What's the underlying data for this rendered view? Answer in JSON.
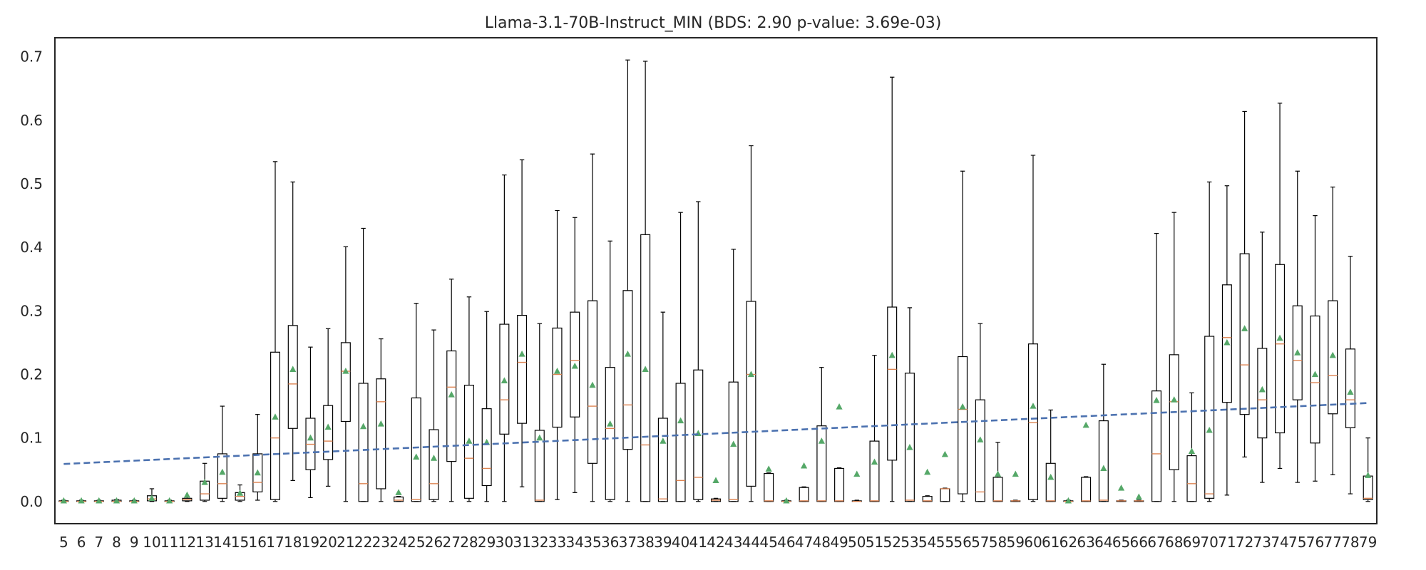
{
  "chart_data": {
    "type": "box",
    "title": "Llama-3.1-70B-Instruct_MIN (BDS: 2.90 p-value: 3.69e-03)",
    "xlabel": "",
    "ylabel": "",
    "ylim": [
      -0.035,
      0.73
    ],
    "grid": false,
    "y_ticks": [
      0.0,
      0.1,
      0.2,
      0.3,
      0.4,
      0.5,
      0.6,
      0.7
    ],
    "x_ticks": [
      5,
      6,
      7,
      8,
      9,
      10,
      11,
      12,
      13,
      14,
      15,
      16,
      17,
      18,
      19,
      20,
      21,
      22,
      23,
      24,
      25,
      26,
      27,
      28,
      29,
      30,
      31,
      32,
      33,
      34,
      35,
      36,
      37,
      38,
      39,
      40,
      41,
      42,
      43,
      44,
      45,
      46,
      47,
      48,
      49,
      50,
      51,
      52,
      53,
      54,
      55,
      56,
      57,
      58,
      59,
      60,
      61,
      62,
      63,
      64,
      65,
      66,
      67,
      68,
      69,
      70,
      71,
      72,
      73,
      74,
      75,
      76,
      77,
      78,
      79
    ],
    "trend_line": {
      "x": [
        5,
        79
      ],
      "y": [
        0.059,
        0.155
      ],
      "style": "dashed",
      "color": "#4c72b0"
    },
    "colors": {
      "box": "#000000",
      "median": "#dd8452",
      "mean": "#55a868",
      "trend": "#4c72b0"
    },
    "boxes": [
      {
        "x": 5,
        "whislo": 0,
        "q1": 0,
        "med": 0,
        "q3": 0.001,
        "whishi": 0.002,
        "mean": 0.001
      },
      {
        "x": 6,
        "whislo": 0,
        "q1": 0,
        "med": 0,
        "q3": 0.001,
        "whishi": 0.002,
        "mean": 0.001
      },
      {
        "x": 7,
        "whislo": 0,
        "q1": 0,
        "med": 0,
        "q3": 0.001,
        "whishi": 0.002,
        "mean": 0.001
      },
      {
        "x": 8,
        "whislo": 0,
        "q1": 0,
        "med": 0,
        "q3": 0.002,
        "whishi": 0.003,
        "mean": 0.001
      },
      {
        "x": 9,
        "whislo": 0,
        "q1": 0,
        "med": 0,
        "q3": 0.001,
        "whishi": 0.002,
        "mean": 0.001
      },
      {
        "x": 10,
        "whislo": 0,
        "q1": 0.001,
        "med": 0.004,
        "q3": 0.009,
        "whishi": 0.02,
        "mean": 0.005
      },
      {
        "x": 11,
        "whislo": 0,
        "q1": 0,
        "med": 0,
        "q3": 0.001,
        "whishi": 0.002,
        "mean": 0.001
      },
      {
        "x": 12,
        "whislo": 0,
        "q1": 0.001,
        "med": 0.003,
        "q3": 0.005,
        "whishi": 0.008,
        "mean": 0.01
      },
      {
        "x": 13,
        "whislo": 0,
        "q1": 0.002,
        "med": 0.012,
        "q3": 0.032,
        "whishi": 0.06,
        "mean": 0.03
      },
      {
        "x": 14,
        "whislo": 0,
        "q1": 0.005,
        "med": 0.028,
        "q3": 0.075,
        "whishi": 0.15,
        "mean": 0.046
      },
      {
        "x": 15,
        "whislo": 0,
        "q1": 0.002,
        "med": 0.008,
        "q3": 0.014,
        "whishi": 0.026,
        "mean": 0.013
      },
      {
        "x": 16,
        "whislo": 0.002,
        "q1": 0.015,
        "med": 0.03,
        "q3": 0.075,
        "whishi": 0.137,
        "mean": 0.045
      },
      {
        "x": 17,
        "whislo": 0,
        "q1": 0.003,
        "med": 0.1,
        "q3": 0.235,
        "whishi": 0.535,
        "mean": 0.133
      },
      {
        "x": 18,
        "whislo": 0.033,
        "q1": 0.115,
        "med": 0.185,
        "q3": 0.277,
        "whishi": 0.503,
        "mean": 0.208
      },
      {
        "x": 19,
        "whislo": 0.006,
        "q1": 0.05,
        "med": 0.09,
        "q3": 0.131,
        "whishi": 0.243,
        "mean": 0.1
      },
      {
        "x": 20,
        "whislo": 0.024,
        "q1": 0.066,
        "med": 0.095,
        "q3": 0.151,
        "whishi": 0.272,
        "mean": 0.117
      },
      {
        "x": 21,
        "whislo": 0,
        "q1": 0.126,
        "med": 0.205,
        "q3": 0.25,
        "whishi": 0.401,
        "mean": 0.205
      },
      {
        "x": 22,
        "whislo": 0,
        "q1": 0,
        "med": 0.028,
        "q3": 0.186,
        "whishi": 0.43,
        "mean": 0.118
      },
      {
        "x": 23,
        "whislo": 0,
        "q1": 0.02,
        "med": 0.157,
        "q3": 0.193,
        "whishi": 0.256,
        "mean": 0.122
      },
      {
        "x": 24,
        "whislo": 0,
        "q1": 0,
        "med": 0.002,
        "q3": 0.007,
        "whishi": 0.008,
        "mean": 0.014
      },
      {
        "x": 25,
        "whislo": 0,
        "q1": 0,
        "med": 0.003,
        "q3": 0.163,
        "whishi": 0.312,
        "mean": 0.07
      },
      {
        "x": 26,
        "whislo": 0,
        "q1": 0.003,
        "med": 0.028,
        "q3": 0.113,
        "whishi": 0.27,
        "mean": 0.068
      },
      {
        "x": 27,
        "whislo": 0,
        "q1": 0.063,
        "med": 0.18,
        "q3": 0.237,
        "whishi": 0.35,
        "mean": 0.168
      },
      {
        "x": 28,
        "whislo": 0,
        "q1": 0.005,
        "med": 0.068,
        "q3": 0.183,
        "whishi": 0.322,
        "mean": 0.095
      },
      {
        "x": 29,
        "whislo": 0,
        "q1": 0.025,
        "med": 0.052,
        "q3": 0.146,
        "whishi": 0.299,
        "mean": 0.093
      },
      {
        "x": 30,
        "whislo": 0,
        "q1": 0.106,
        "med": 0.16,
        "q3": 0.279,
        "whishi": 0.514,
        "mean": 0.19
      },
      {
        "x": 31,
        "whislo": 0.023,
        "q1": 0.123,
        "med": 0.219,
        "q3": 0.293,
        "whishi": 0.538,
        "mean": 0.232
      },
      {
        "x": 32,
        "whislo": 0,
        "q1": 0,
        "med": 0.002,
        "q3": 0.112,
        "whishi": 0.28,
        "mean": 0.1
      },
      {
        "x": 33,
        "whislo": 0.003,
        "q1": 0.117,
        "med": 0.2,
        "q3": 0.273,
        "whishi": 0.458,
        "mean": 0.205
      },
      {
        "x": 34,
        "whislo": 0.014,
        "q1": 0.133,
        "med": 0.222,
        "q3": 0.298,
        "whishi": 0.447,
        "mean": 0.213
      },
      {
        "x": 35,
        "whislo": 0,
        "q1": 0.06,
        "med": 0.15,
        "q3": 0.316,
        "whishi": 0.547,
        "mean": 0.183
      },
      {
        "x": 36,
        "whislo": 0,
        "q1": 0.003,
        "med": 0.115,
        "q3": 0.211,
        "whishi": 0.41,
        "mean": 0.122
      },
      {
        "x": 37,
        "whislo": 0,
        "q1": 0.082,
        "med": 0.152,
        "q3": 0.332,
        "whishi": 0.695,
        "mean": 0.232
      },
      {
        "x": 38,
        "whislo": 0,
        "q1": 0,
        "med": 0.089,
        "q3": 0.42,
        "whishi": 0.693,
        "mean": 0.208
      },
      {
        "x": 39,
        "whislo": 0,
        "q1": 0,
        "med": 0.004,
        "q3": 0.131,
        "whishi": 0.298,
        "mean": 0.095
      },
      {
        "x": 40,
        "whislo": 0,
        "q1": 0,
        "med": 0.033,
        "q3": 0.186,
        "whishi": 0.455,
        "mean": 0.127
      },
      {
        "x": 41,
        "whislo": 0,
        "q1": 0.003,
        "med": 0.038,
        "q3": 0.207,
        "whishi": 0.472,
        "mean": 0.107
      },
      {
        "x": 42,
        "whislo": 0,
        "q1": 0,
        "med": 0.002,
        "q3": 0.004,
        "whishi": 0.005,
        "mean": 0.033
      },
      {
        "x": 43,
        "whislo": 0,
        "q1": 0,
        "med": 0.003,
        "q3": 0.188,
        "whishi": 0.397,
        "mean": 0.09
      },
      {
        "x": 44,
        "whislo": 0,
        "q1": 0.024,
        "med": 0.2,
        "q3": 0.315,
        "whishi": 0.56,
        "mean": 0.2
      },
      {
        "x": 45,
        "whislo": 0,
        "q1": 0,
        "med": 0.001,
        "q3": 0.044,
        "whishi": 0.045,
        "mean": 0.051
      },
      {
        "x": 46,
        "whislo": 0,
        "q1": 0,
        "med": 0,
        "q3": 0.001,
        "whishi": 0.002,
        "mean": 0.001
      },
      {
        "x": 47,
        "whislo": 0,
        "q1": 0,
        "med": 0.001,
        "q3": 0.022,
        "whishi": 0.023,
        "mean": 0.056
      },
      {
        "x": 48,
        "whislo": 0,
        "q1": 0,
        "med": 0.001,
        "q3": 0.119,
        "whishi": 0.211,
        "mean": 0.095
      },
      {
        "x": 49,
        "whislo": 0,
        "q1": 0,
        "med": 0.001,
        "q3": 0.052,
        "whishi": 0.053,
        "mean": 0.149
      },
      {
        "x": 50,
        "whislo": 0,
        "q1": 0,
        "med": 0,
        "q3": 0.001,
        "whishi": 0.002,
        "mean": 0.043
      },
      {
        "x": 51,
        "whislo": 0,
        "q1": 0,
        "med": 0.001,
        "q3": 0.095,
        "whishi": 0.23,
        "mean": 0.062
      },
      {
        "x": 52,
        "whislo": 0,
        "q1": 0.065,
        "med": 0.208,
        "q3": 0.306,
        "whishi": 0.668,
        "mean": 0.23
      },
      {
        "x": 53,
        "whislo": 0,
        "q1": 0,
        "med": 0.002,
        "q3": 0.202,
        "whishi": 0.305,
        "mean": 0.085
      },
      {
        "x": 54,
        "whislo": 0,
        "q1": 0,
        "med": 0.001,
        "q3": 0.008,
        "whishi": 0.009,
        "mean": 0.046
      },
      {
        "x": 55,
        "whislo": 0,
        "q1": 0,
        "med": 0.02,
        "q3": 0.02,
        "whishi": 0.021,
        "mean": 0.074
      },
      {
        "x": 56,
        "whislo": 0,
        "q1": 0.012,
        "med": 0.145,
        "q3": 0.228,
        "whishi": 0.52,
        "mean": 0.149
      },
      {
        "x": 57,
        "whislo": 0,
        "q1": 0,
        "med": 0.015,
        "q3": 0.16,
        "whishi": 0.28,
        "mean": 0.097
      },
      {
        "x": 58,
        "whislo": 0,
        "q1": 0,
        "med": 0.001,
        "q3": 0.038,
        "whishi": 0.093,
        "mean": 0.043
      },
      {
        "x": 59,
        "whislo": 0,
        "q1": 0,
        "med": 0.001,
        "q3": 0.001,
        "whishi": 0.002,
        "mean": 0.043
      },
      {
        "x": 60,
        "whislo": 0,
        "q1": 0.003,
        "med": 0.124,
        "q3": 0.248,
        "whishi": 0.545,
        "mean": 0.15
      },
      {
        "x": 61,
        "whislo": 0,
        "q1": 0,
        "med": 0.001,
        "q3": 0.06,
        "whishi": 0.144,
        "mean": 0.038
      },
      {
        "x": 62,
        "whislo": 0,
        "q1": 0,
        "med": 0,
        "q3": 0.001,
        "whishi": 0.002,
        "mean": 0.001
      },
      {
        "x": 63,
        "whislo": 0,
        "q1": 0,
        "med": 0.001,
        "q3": 0.038,
        "whishi": 0.039,
        "mean": 0.12
      },
      {
        "x": 64,
        "whislo": 0,
        "q1": 0,
        "med": 0.002,
        "q3": 0.127,
        "whishi": 0.216,
        "mean": 0.052
      },
      {
        "x": 65,
        "whislo": 0,
        "q1": 0,
        "med": 0.001,
        "q3": 0.001,
        "whishi": 0.002,
        "mean": 0.021
      },
      {
        "x": 66,
        "whislo": 0,
        "q1": 0,
        "med": 0.001,
        "q3": 0.001,
        "whishi": 0.002,
        "mean": 0.007
      },
      {
        "x": 67,
        "whislo": 0,
        "q1": 0,
        "med": 0.075,
        "q3": 0.174,
        "whishi": 0.422,
        "mean": 0.159
      },
      {
        "x": 68,
        "whislo": 0,
        "q1": 0.05,
        "med": 0.157,
        "q3": 0.231,
        "whishi": 0.455,
        "mean": 0.16
      },
      {
        "x": 69,
        "whislo": 0,
        "q1": 0,
        "med": 0.028,
        "q3": 0.072,
        "whishi": 0.171,
        "mean": 0.079
      },
      {
        "x": 70,
        "whislo": 0,
        "q1": 0.005,
        "med": 0.012,
        "q3": 0.26,
        "whishi": 0.503,
        "mean": 0.112
      },
      {
        "x": 71,
        "whislo": 0.01,
        "q1": 0.156,
        "med": 0.258,
        "q3": 0.341,
        "whishi": 0.497,
        "mean": 0.25
      },
      {
        "x": 72,
        "whislo": 0.07,
        "q1": 0.137,
        "med": 0.215,
        "q3": 0.39,
        "whishi": 0.614,
        "mean": 0.272
      },
      {
        "x": 73,
        "whislo": 0.03,
        "q1": 0.1,
        "med": 0.16,
        "q3": 0.241,
        "whishi": 0.424,
        "mean": 0.176
      },
      {
        "x": 74,
        "whislo": 0.052,
        "q1": 0.108,
        "med": 0.248,
        "q3": 0.373,
        "whishi": 0.627,
        "mean": 0.257
      },
      {
        "x": 75,
        "whislo": 0.03,
        "q1": 0.16,
        "med": 0.222,
        "q3": 0.308,
        "whishi": 0.52,
        "mean": 0.234
      },
      {
        "x": 76,
        "whislo": 0.032,
        "q1": 0.092,
        "med": 0.187,
        "q3": 0.292,
        "whishi": 0.45,
        "mean": 0.2
      },
      {
        "x": 77,
        "whislo": 0.042,
        "q1": 0.138,
        "med": 0.198,
        "q3": 0.316,
        "whishi": 0.495,
        "mean": 0.23
      },
      {
        "x": 78,
        "whislo": 0.012,
        "q1": 0.116,
        "med": 0.16,
        "q3": 0.24,
        "whishi": 0.386,
        "mean": 0.172
      },
      {
        "x": 79,
        "whislo": 0,
        "q1": 0.003,
        "med": 0.005,
        "q3": 0.04,
        "whishi": 0.1,
        "mean": 0.041
      }
    ]
  }
}
